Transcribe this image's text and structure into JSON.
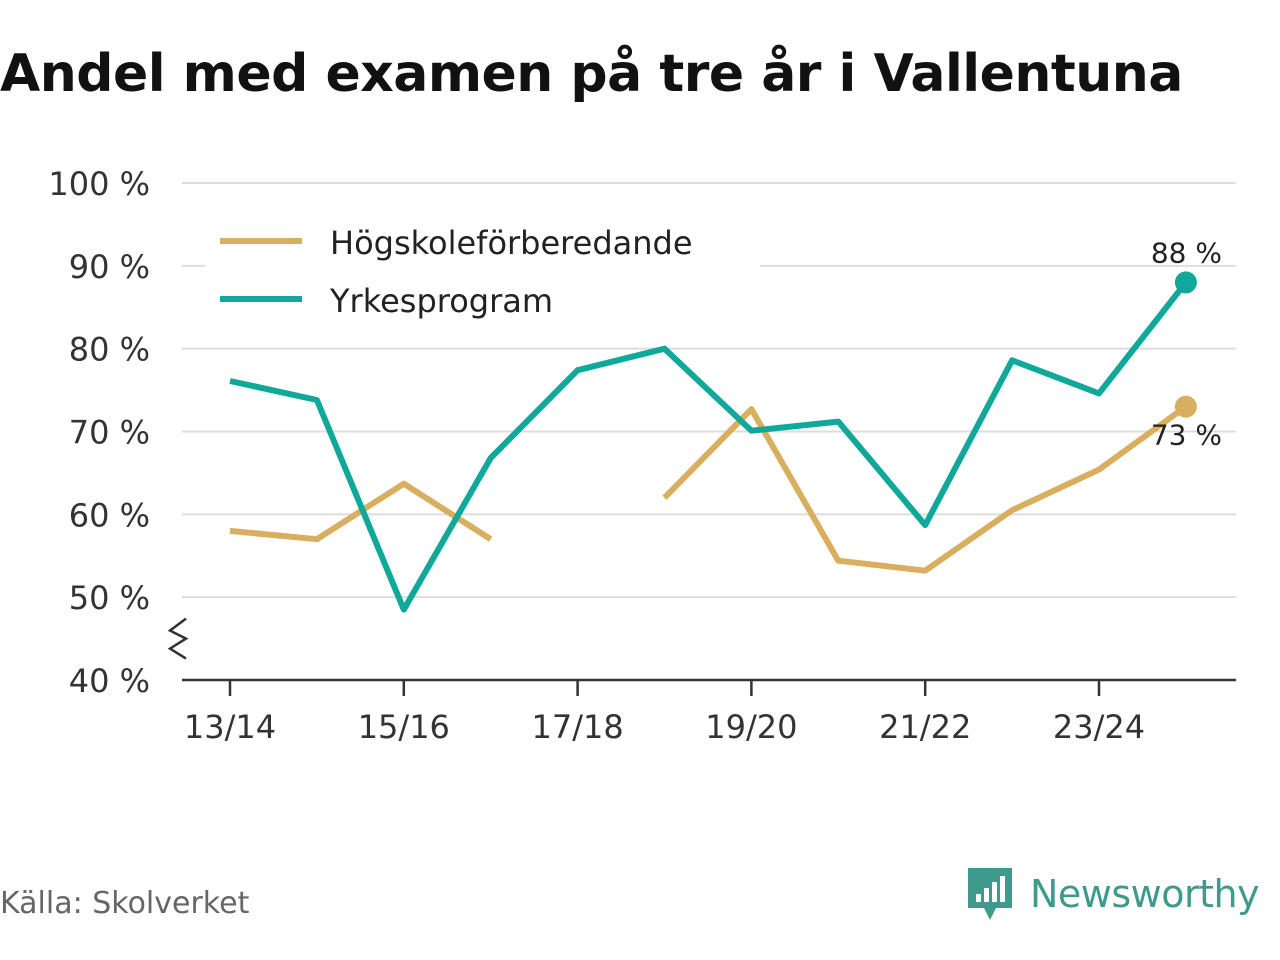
{
  "title": "Andel med examen på tre år i Vallentuna",
  "source": "Källa: Skolverket",
  "brand": {
    "name": "Newsworthy",
    "icon": "newsworthy-logo-icon",
    "color": "#3d9a8c"
  },
  "chart_data": {
    "type": "line",
    "title": "Andel med examen på tre år i Vallentuna",
    "xlabel": "",
    "ylabel": "",
    "ylim": [
      40,
      100
    ],
    "yticks": [
      40,
      50,
      60,
      70,
      80,
      90,
      100
    ],
    "ytick_suffix": " %",
    "categories": [
      "13/14",
      "14/15",
      "15/16",
      "16/17",
      "17/18",
      "18/19",
      "19/20",
      "20/21",
      "21/22",
      "22/23",
      "23/24",
      "24/25"
    ],
    "xtick_labels": [
      "13/14",
      "15/16",
      "17/18",
      "19/20",
      "21/22",
      "23/24"
    ],
    "axis_break": true,
    "grid": true,
    "legend_position": "top-left",
    "series": [
      {
        "name": "Högskoleförberedande",
        "color": "#d9ae5f",
        "values": [
          58,
          57,
          63.7,
          57,
          null,
          62,
          72.7,
          54.4,
          53.2,
          60.5,
          65.4,
          73
        ],
        "end_label": "73 %"
      },
      {
        "name": "Yrkesprogram",
        "color": "#0fa89a",
        "values": [
          76.1,
          73.8,
          48.5,
          66.8,
          77.4,
          80,
          70.1,
          71.2,
          58.7,
          78.6,
          74.6,
          88
        ],
        "end_label": "88 %"
      }
    ]
  }
}
